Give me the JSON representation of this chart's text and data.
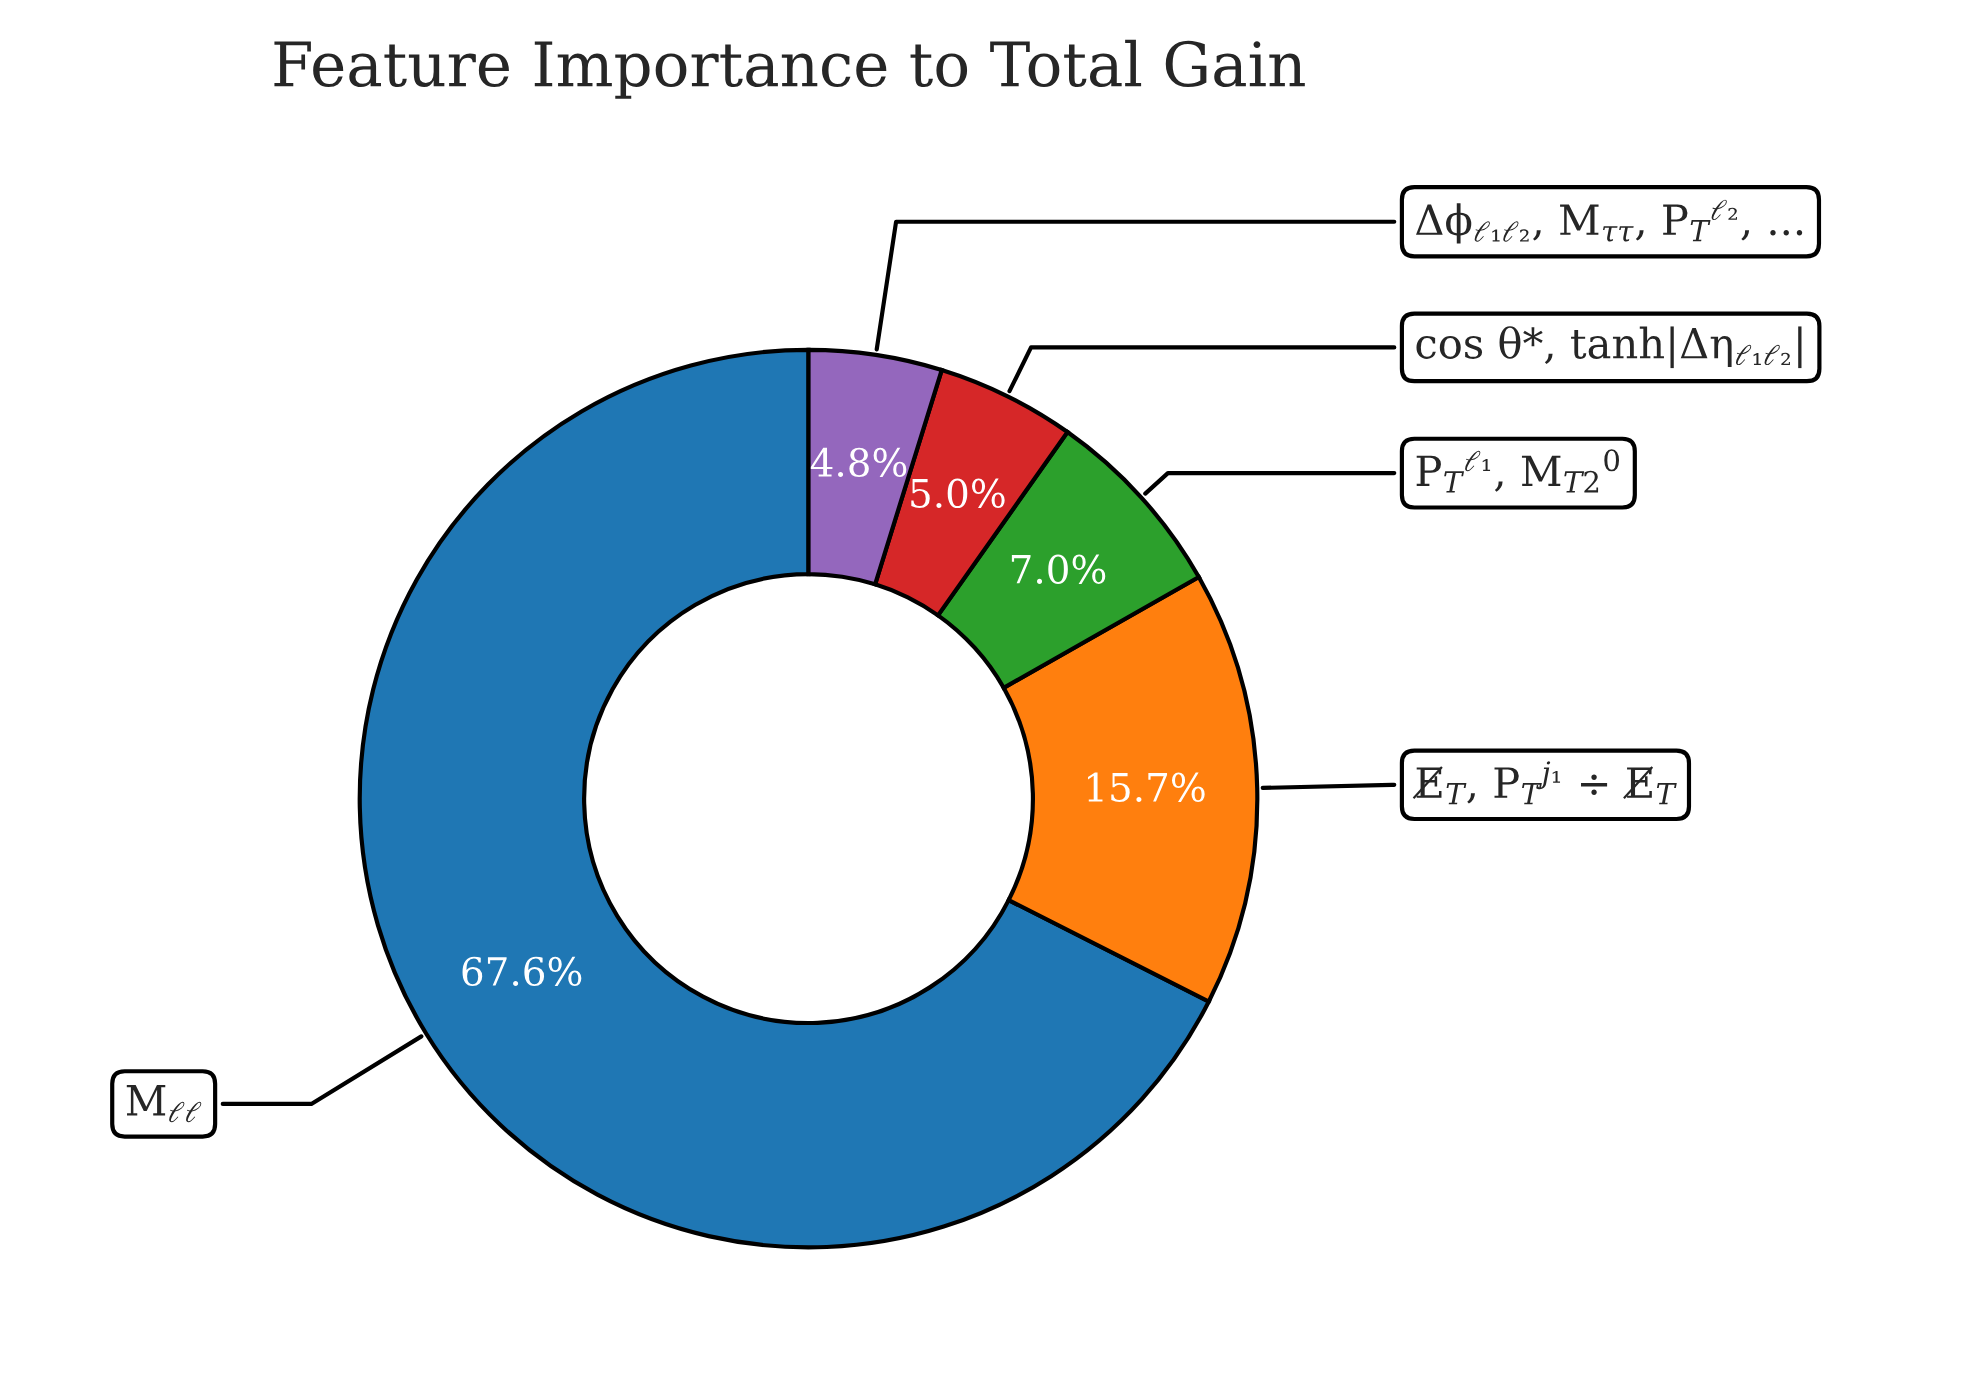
{
  "chart_data": {
    "type": "donut",
    "title": "Feature Importance to Total Gain",
    "categories": [
      "M$_{ℓℓ}$",
      "E̸$_{T}$, P$_{T}$$^{j₁}$ ÷ E̸$_{T}$",
      "P$_{T}$$^{ℓ₁}$, M$_{T2}$$^{0}$",
      "cos θ*, tanh|Δη$_{ℓ₁ℓ₂}$|",
      "Δϕ$_{ℓ₁ℓ₂}$, M$_{ττ}$, P$_{T}$$^{ℓ₂}$, ..."
    ],
    "values": [
      67.6,
      15.7,
      7.0,
      5.0,
      4.8
    ],
    "colors": [
      "#1f77b4",
      "#ff7f0e",
      "#2ca02c",
      "#d62728",
      "#9467bd"
    ],
    "value_labels": [
      "67.6%",
      "15.7%",
      "7.0%",
      "5.0%",
      "4.8%"
    ],
    "legend": false
  }
}
